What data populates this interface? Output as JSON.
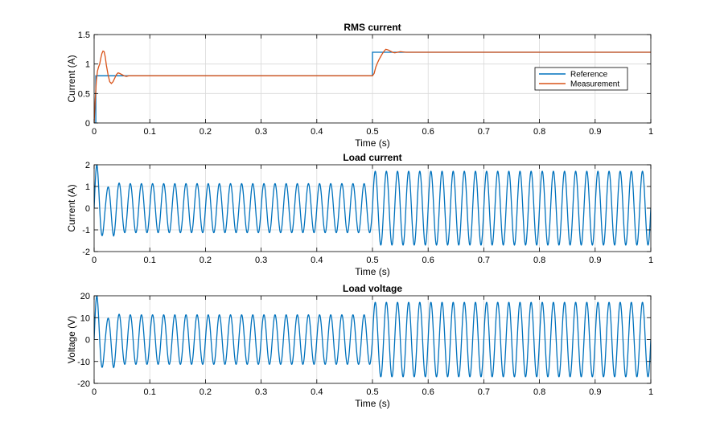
{
  "colors": {
    "reference": "#0072BD",
    "measurement": "#D95319",
    "grid": "#d9d9d9",
    "axis": "#000000"
  },
  "chart_data": [
    {
      "type": "line",
      "title": "RMS current",
      "xlabel": "Time (s)",
      "ylabel": "Current (A)",
      "xlim": [
        0,
        1
      ],
      "ylim": [
        0,
        1.5
      ],
      "xticks": [
        0,
        0.1,
        0.2,
        0.3,
        0.4,
        0.5,
        0.6,
        0.7,
        0.8,
        0.9,
        1
      ],
      "xtick_labels": [
        "0",
        "0.1",
        "0.2",
        "0.3",
        "0.4",
        "0.5",
        "0.6",
        "0.7",
        "0.8",
        "0.9",
        "1"
      ],
      "yticks": [
        0,
        0.5,
        1,
        1.5
      ],
      "ytick_labels": [
        "0",
        "0.5",
        "1",
        "1.5"
      ],
      "grid": true,
      "legend": {
        "position": "right",
        "entries": [
          "Reference",
          "Measurement"
        ]
      },
      "series": [
        {
          "name": "Reference",
          "x": [
            0,
            0.003,
            0.003,
            0.5,
            0.5,
            1
          ],
          "y": [
            0,
            0,
            0.8,
            0.8,
            1.2,
            1.2
          ]
        },
        {
          "name": "Measurement",
          "x": [
            0,
            0.002,
            0.004,
            0.006,
            0.008,
            0.01,
            0.012,
            0.014,
            0.016,
            0.018,
            0.02,
            0.022,
            0.025,
            0.028,
            0.031,
            0.034,
            0.037,
            0.04,
            0.043,
            0.046,
            0.05,
            0.054,
            0.058,
            0.062,
            0.07,
            0.08,
            0.1,
            0.2,
            0.3,
            0.4,
            0.5,
            0.503,
            0.506,
            0.509,
            0.512,
            0.515,
            0.518,
            0.521,
            0.524,
            0.528,
            0.532,
            0.536,
            0.54,
            0.545,
            0.55,
            0.56,
            0.57,
            0.6,
            0.7,
            0.8,
            0.9,
            1.0
          ],
          "y": [
            0,
            0.4,
            0.72,
            0.88,
            0.95,
            1.0,
            1.1,
            1.18,
            1.22,
            1.21,
            1.12,
            0.98,
            0.82,
            0.7,
            0.67,
            0.7,
            0.76,
            0.82,
            0.85,
            0.84,
            0.82,
            0.8,
            0.79,
            0.8,
            0.8,
            0.8,
            0.8,
            0.8,
            0.8,
            0.8,
            0.8,
            0.84,
            0.95,
            1.02,
            1.08,
            1.13,
            1.18,
            1.22,
            1.25,
            1.24,
            1.22,
            1.2,
            1.19,
            1.2,
            1.21,
            1.2,
            1.2,
            1.2,
            1.2,
            1.2,
            1.2,
            1.2
          ]
        }
      ]
    },
    {
      "type": "line",
      "title": "Load current",
      "xlabel": "Time (s)",
      "ylabel": "Current (A)",
      "xlim": [
        0,
        1
      ],
      "ylim": [
        -2,
        2
      ],
      "xticks": [
        0,
        0.1,
        0.2,
        0.3,
        0.4,
        0.5,
        0.6,
        0.7,
        0.8,
        0.9,
        1
      ],
      "xtick_labels": [
        "0",
        "0.1",
        "0.2",
        "0.3",
        "0.4",
        "0.5",
        "0.6",
        "0.7",
        "0.8",
        "0.9",
        "1"
      ],
      "yticks": [
        -2,
        -1,
        0,
        1,
        2
      ],
      "ytick_labels": [
        "-2",
        "-1",
        "0",
        "1",
        "2"
      ],
      "grid": true,
      "series": [
        {
          "name": "Load current",
          "frequency_hz": 50,
          "segments": [
            {
              "t_start": 0.0,
              "t_end": 0.5,
              "amplitude": 1.13
            },
            {
              "t_start": 0.5,
              "t_end": 1.0,
              "amplitude": 1.7
            }
          ],
          "startup_peaks": [
            {
              "t": 0.005,
              "value": 2.0
            },
            {
              "t": 0.013,
              "value": -1.4
            },
            {
              "t": 0.02,
              "value": 0.85
            },
            {
              "t": 0.028,
              "value": -1.05
            },
            {
              "t": 0.035,
              "value": 1.28
            },
            {
              "t": 0.043,
              "value": -1.17
            }
          ]
        }
      ]
    },
    {
      "type": "line",
      "title": "Load voltage",
      "xlabel": "Time (s)",
      "ylabel": "Voltage (V)",
      "xlim": [
        0,
        1
      ],
      "ylim": [
        -20,
        20
      ],
      "xticks": [
        0,
        0.1,
        0.2,
        0.3,
        0.4,
        0.5,
        0.6,
        0.7,
        0.8,
        0.9,
        1
      ],
      "xtick_labels": [
        "0",
        "0.1",
        "0.2",
        "0.3",
        "0.4",
        "0.5",
        "0.6",
        "0.7",
        "0.8",
        "0.9",
        "1"
      ],
      "yticks": [
        -20,
        -10,
        0,
        10,
        20
      ],
      "ytick_labels": [
        "-20",
        "-10",
        "0",
        "10",
        "20"
      ],
      "grid": true,
      "series": [
        {
          "name": "Load voltage",
          "frequency_hz": 50,
          "segments": [
            {
              "t_start": 0.0,
              "t_end": 0.5,
              "amplitude": 11.3
            },
            {
              "t_start": 0.5,
              "t_end": 1.0,
              "amplitude": 17.0
            }
          ],
          "startup_peaks": [
            {
              "t": 0.005,
              "value": 20.0
            },
            {
              "t": 0.013,
              "value": -14.0
            },
            {
              "t": 0.02,
              "value": 8.5
            },
            {
              "t": 0.028,
              "value": -10.5
            },
            {
              "t": 0.035,
              "value": 12.8
            },
            {
              "t": 0.043,
              "value": -11.7
            }
          ]
        }
      ]
    }
  ]
}
